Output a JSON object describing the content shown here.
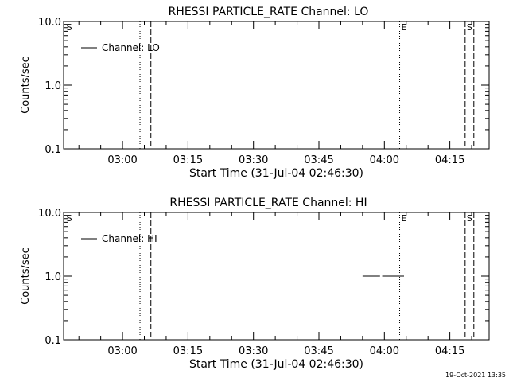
{
  "chart_data": [
    {
      "type": "line",
      "title": "RHESSI PARTICLE_RATE Channel: LO",
      "xlabel": "Start Time (31-Jul-04 02:46:30)",
      "ylabel": "Counts/sec",
      "yscale": "log",
      "ylim": [
        0.1,
        10.0
      ],
      "xlim_minutes": [
        0,
        97.5
      ],
      "x_start": "02:46:30",
      "x_ticks": [
        {
          "label": "03:00",
          "minutes": 13.5
        },
        {
          "label": "03:15",
          "minutes": 28.5
        },
        {
          "label": "03:30",
          "minutes": 43.5
        },
        {
          "label": "03:45",
          "minutes": 58.5
        },
        {
          "label": "04:00",
          "minutes": 73.5
        },
        {
          "label": "04:15",
          "minutes": 88.5
        }
      ],
      "y_ticks": [
        {
          "label": "10.0",
          "value": 10.0
        },
        {
          "label": "1.0",
          "value": 1.0
        },
        {
          "label": "0.1",
          "value": 0.1
        }
      ],
      "legend": {
        "label": "Channel: LO",
        "position": "top-left"
      },
      "series": [
        {
          "name": "Channel: LO",
          "segments": []
        }
      ],
      "markers": [
        {
          "minutes": 0.3,
          "style": "none",
          "label": "S"
        },
        {
          "minutes": 17.5,
          "style": "dotted",
          "label": ""
        },
        {
          "minutes": 20.0,
          "style": "dashed",
          "label": ""
        },
        {
          "minutes": 77.0,
          "style": "dotted",
          "label": "E"
        },
        {
          "minutes": 92.0,
          "style": "dashed",
          "label": "S"
        },
        {
          "minutes": 94.0,
          "style": "dashed",
          "label": ""
        }
      ]
    },
    {
      "type": "line",
      "title": "RHESSI PARTICLE_RATE Channel: HI",
      "xlabel": "Start Time (31-Jul-04 02:46:30)",
      "ylabel": "Counts/sec",
      "yscale": "log",
      "ylim": [
        0.1,
        10.0
      ],
      "xlim_minutes": [
        0,
        97.5
      ],
      "x_start": "02:46:30",
      "x_ticks": [
        {
          "label": "03:00",
          "minutes": 13.5
        },
        {
          "label": "03:15",
          "minutes": 28.5
        },
        {
          "label": "03:30",
          "minutes": 43.5
        },
        {
          "label": "03:45",
          "minutes": 58.5
        },
        {
          "label": "04:00",
          "minutes": 73.5
        },
        {
          "label": "04:15",
          "minutes": 88.5
        }
      ],
      "y_ticks": [
        {
          "label": "10.0",
          "value": 10.0
        },
        {
          "label": "1.0",
          "value": 1.0
        },
        {
          "label": "0.1",
          "value": 0.1
        }
      ],
      "legend": {
        "label": "Channel: HI",
        "position": "top-left"
      },
      "series": [
        {
          "name": "Channel: HI",
          "segments": [
            {
              "x": [
                68.5,
                72.5
              ],
              "y": [
                1.0,
                1.0
              ]
            },
            {
              "x": [
                73.0,
                78.0
              ],
              "y": [
                1.0,
                1.0
              ]
            }
          ]
        }
      ],
      "markers": [
        {
          "minutes": 0.3,
          "style": "none",
          "label": "S"
        },
        {
          "minutes": 17.5,
          "style": "dotted",
          "label": ""
        },
        {
          "minutes": 20.0,
          "style": "dashed",
          "label": ""
        },
        {
          "minutes": 77.0,
          "style": "dotted",
          "label": "E"
        },
        {
          "minutes": 92.0,
          "style": "dashed",
          "label": "S"
        },
        {
          "minutes": 94.0,
          "style": "dashed",
          "label": ""
        }
      ]
    }
  ],
  "footer": {
    "timestamp": "19-Oct-2021 13:35"
  }
}
